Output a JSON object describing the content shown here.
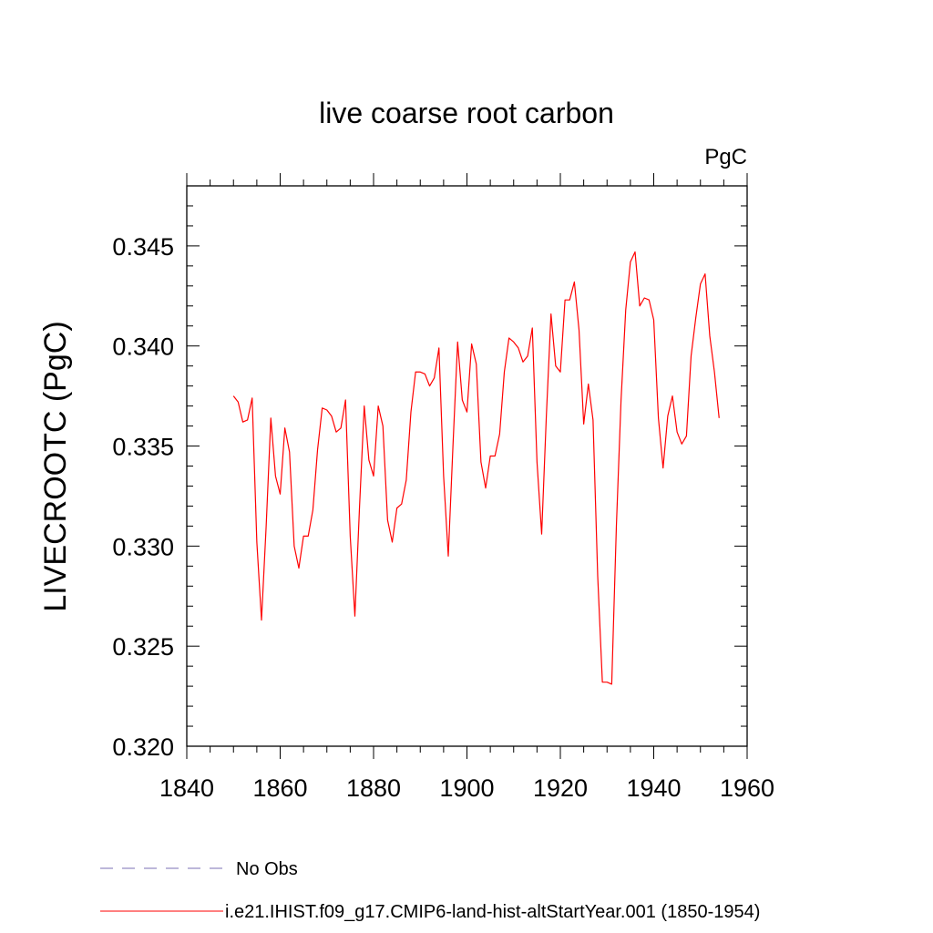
{
  "chart_data": {
    "type": "line",
    "title": "live coarse root carbon",
    "units_label": "PgC",
    "ylabel": "LIVECROOTC  (PgC)",
    "xlabel": "",
    "xlim": [
      1840,
      1960
    ],
    "ylim": [
      0.32,
      0.348
    ],
    "x_ticks": [
      "1840",
      "1860",
      "1880",
      "1900",
      "1920",
      "1940",
      "1960"
    ],
    "y_ticks": [
      "0.320",
      "0.325",
      "0.330",
      "0.335",
      "0.340",
      "0.345"
    ],
    "grid": false,
    "legend_placement": "bottom-left",
    "series": [
      {
        "name": "No Obs",
        "color": "#7b6fb4",
        "style": "dashed",
        "x": [],
        "values": []
      },
      {
        "name": "i.e21.IHIST.f09_g17.CMIP6-land-hist-altStartYear.001 (1850-1954)",
        "color": "#ff0000",
        "style": "solid",
        "x": [
          1850,
          1851,
          1852,
          1853,
          1854,
          1855,
          1856,
          1857,
          1858,
          1859,
          1860,
          1861,
          1862,
          1863,
          1864,
          1865,
          1866,
          1867,
          1868,
          1869,
          1870,
          1871,
          1872,
          1873,
          1874,
          1875,
          1876,
          1877,
          1878,
          1879,
          1880,
          1881,
          1882,
          1883,
          1884,
          1885,
          1886,
          1887,
          1888,
          1889,
          1890,
          1891,
          1892,
          1893,
          1894,
          1895,
          1896,
          1897,
          1898,
          1899,
          1900,
          1901,
          1902,
          1903,
          1904,
          1905,
          1906,
          1907,
          1908,
          1909,
          1910,
          1911,
          1912,
          1913,
          1914,
          1915,
          1916,
          1917,
          1918,
          1919,
          1920,
          1921,
          1922,
          1923,
          1924,
          1925,
          1926,
          1927,
          1928,
          1929,
          1930,
          1931,
          1932,
          1933,
          1934,
          1935,
          1936,
          1937,
          1938,
          1939,
          1940,
          1941,
          1942,
          1943,
          1944,
          1945,
          1946,
          1947,
          1948,
          1949,
          1950,
          1951,
          1952,
          1953,
          1954
        ],
        "values": [
          0.3375,
          0.3372,
          0.3362,
          0.3363,
          0.3374,
          0.3302,
          0.3263,
          0.331,
          0.3364,
          0.3335,
          0.3326,
          0.3359,
          0.3347,
          0.33,
          0.3289,
          0.3305,
          0.3305,
          0.3318,
          0.3348,
          0.3369,
          0.3368,
          0.3365,
          0.3357,
          0.3359,
          0.3373,
          0.3305,
          0.3265,
          0.332,
          0.337,
          0.3343,
          0.3335,
          0.337,
          0.336,
          0.3313,
          0.3302,
          0.3319,
          0.3321,
          0.3333,
          0.3367,
          0.3387,
          0.3387,
          0.3386,
          0.338,
          0.3384,
          0.3399,
          0.3335,
          0.3295,
          0.335,
          0.3402,
          0.3373,
          0.3367,
          0.3401,
          0.3391,
          0.3342,
          0.3329,
          0.3345,
          0.3345,
          0.3356,
          0.3387,
          0.3404,
          0.3402,
          0.3399,
          0.3392,
          0.3395,
          0.3409,
          0.3342,
          0.3306,
          0.3365,
          0.3416,
          0.339,
          0.3387,
          0.3423,
          0.3423,
          0.3432,
          0.3408,
          0.3361,
          0.3381,
          0.3363,
          0.3285,
          0.3232,
          0.3232,
          0.3231,
          0.331,
          0.3373,
          0.3418,
          0.3442,
          0.3447,
          0.342,
          0.3424,
          0.3423,
          0.3413,
          0.3364,
          0.3339,
          0.3365,
          0.3375,
          0.3357,
          0.3351,
          0.3355,
          0.3395,
          0.3414,
          0.3431,
          0.3436,
          0.3405,
          0.3387,
          0.3364
        ]
      }
    ]
  }
}
